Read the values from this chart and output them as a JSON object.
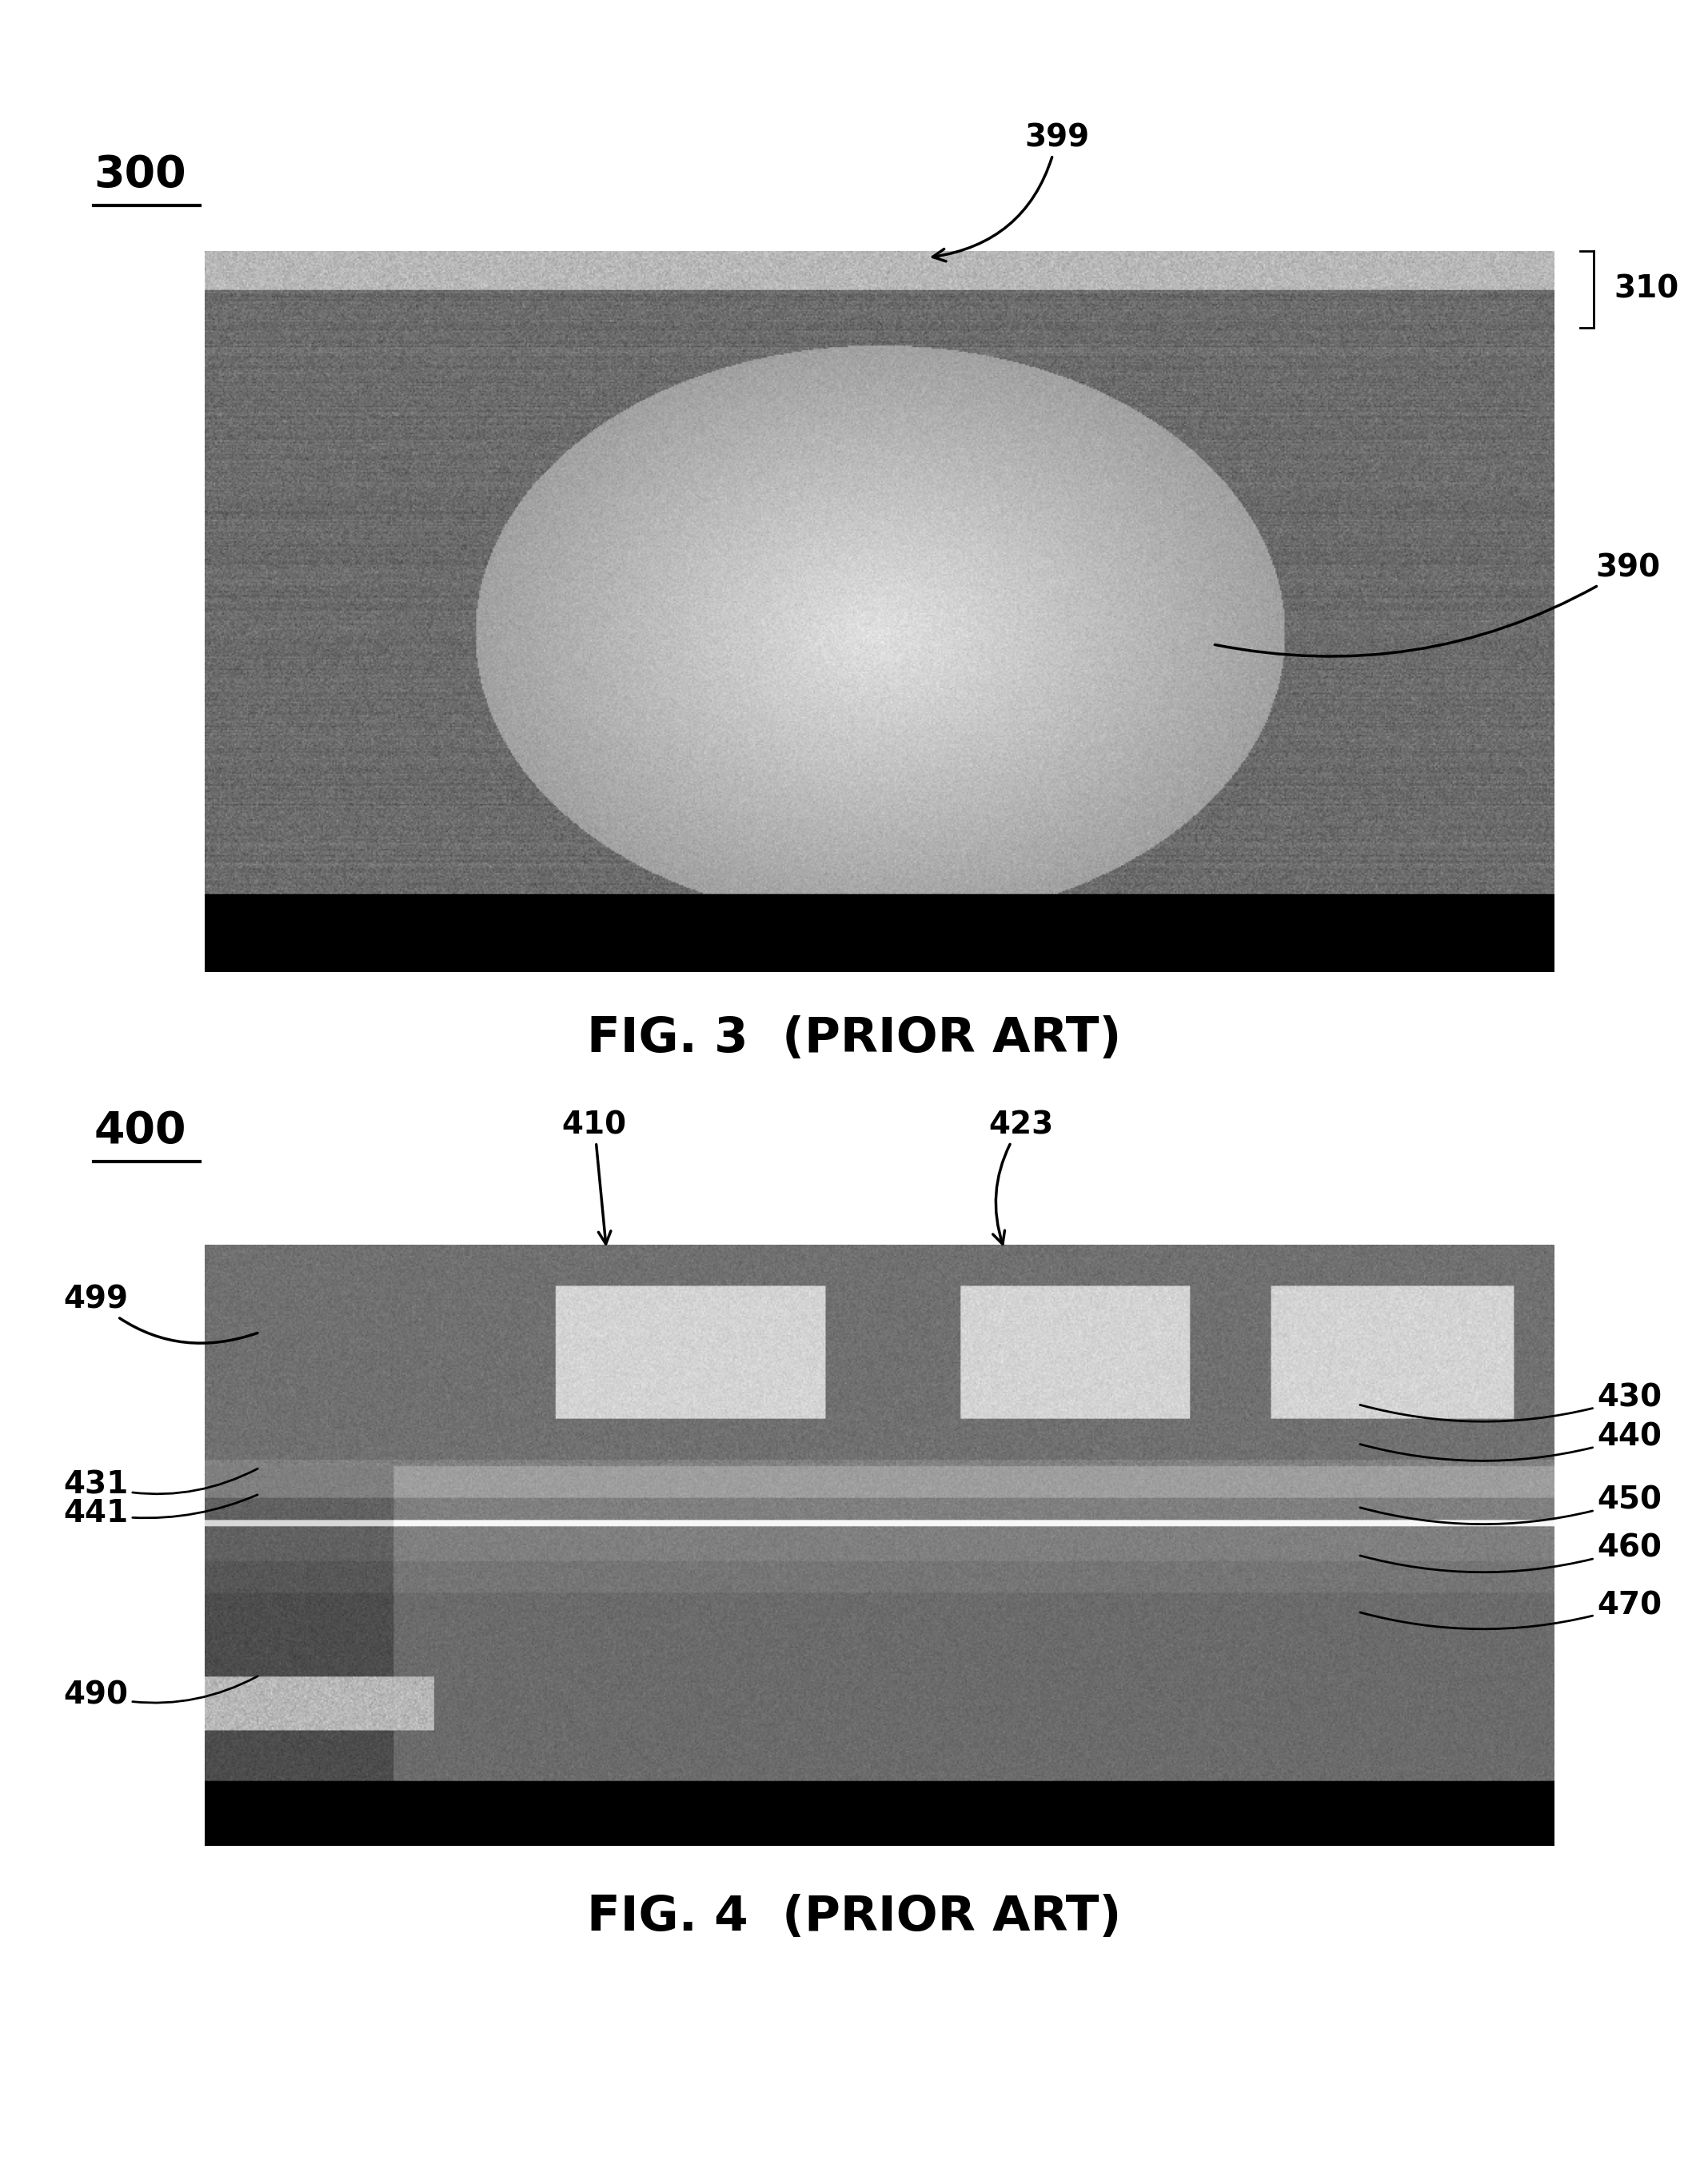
{
  "fig_width": 21.36,
  "fig_height": 27.32,
  "background_color": "#ffffff",
  "fig3": {
    "label": "300",
    "caption": "FIG. 3  (PRIOR ART)"
  },
  "fig4": {
    "label": "400",
    "caption": "FIG. 4  (PRIOR ART)"
  }
}
